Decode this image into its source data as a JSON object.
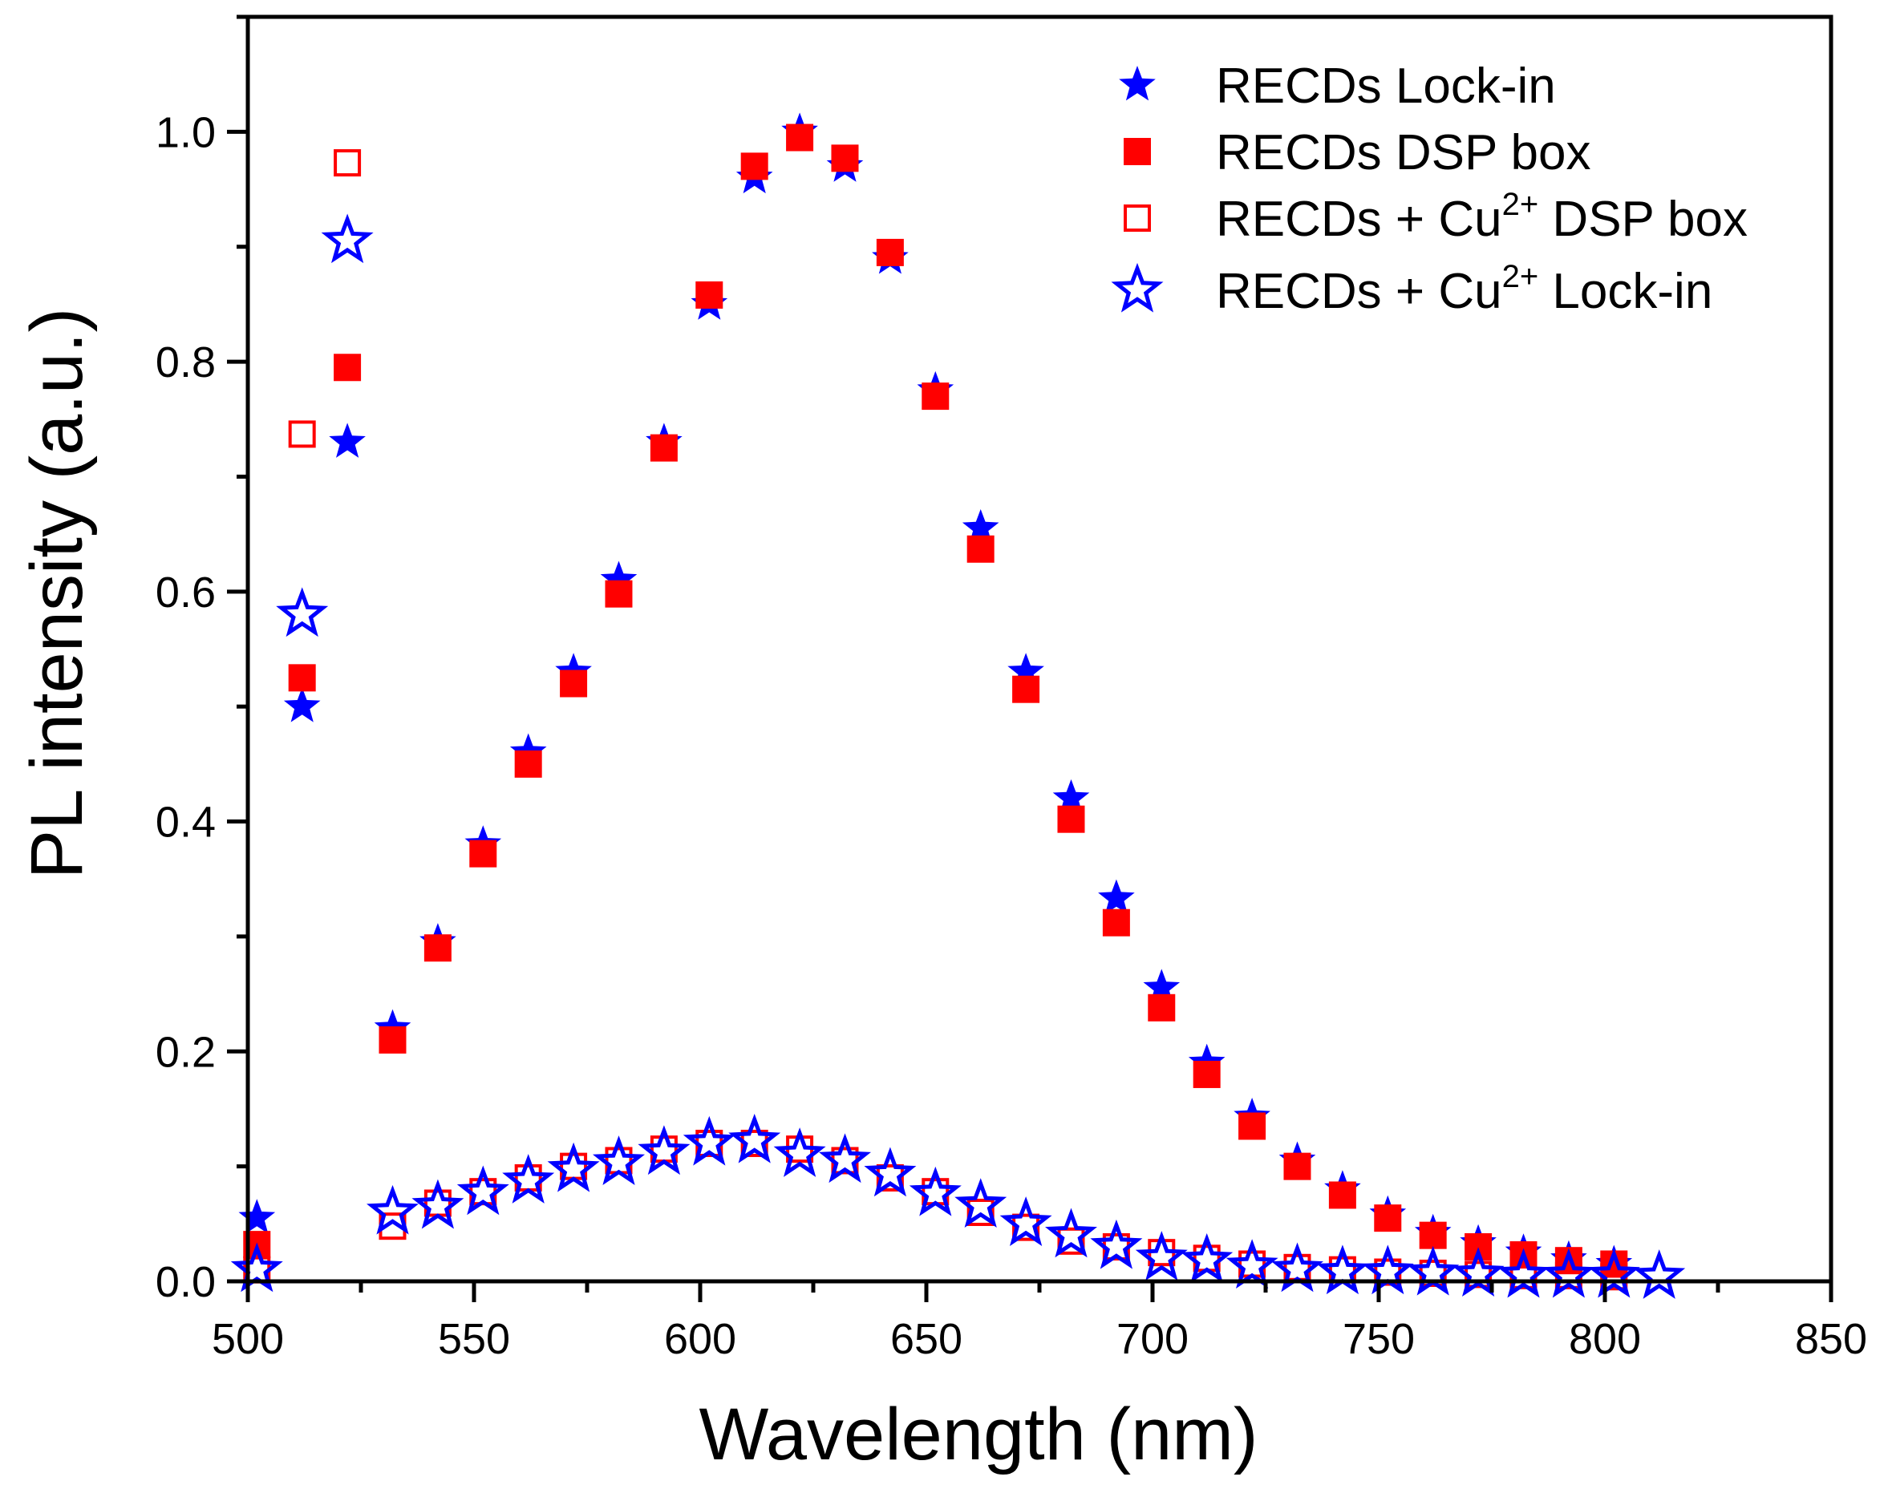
{
  "chart_data": {
    "type": "scatter",
    "title": "",
    "xlabel": "Wavelength (nm)",
    "ylabel": "PL intensity (a.u.)",
    "xlim": [
      500,
      850
    ],
    "ylim": [
      0,
      1.1
    ],
    "xticks": [
      500,
      550,
      600,
      650,
      700,
      750,
      800,
      850
    ],
    "xtick_labels": [
      "500",
      "550",
      "600",
      "650",
      "700",
      "750",
      "800",
      "850"
    ],
    "yticks": [
      0,
      0.2,
      0.4,
      0.6,
      0.8,
      1.0
    ],
    "ytick_labels": [
      "0.0",
      "0.2",
      "0.4",
      "0.6",
      "0.8",
      "1.0"
    ],
    "grid": false,
    "legend_position": "top-right",
    "series": [
      {
        "name": "RECDs Lock-in",
        "label_parts": [
          "RECDs Lock-in"
        ],
        "marker": "star-filled",
        "color": "#0000ff",
        "x": [
          502,
          512,
          522,
          532,
          542,
          552,
          562,
          572,
          582,
          592,
          602,
          612,
          622,
          632,
          642,
          652,
          662,
          672,
          682,
          692,
          702,
          712,
          722,
          732,
          742,
          752,
          762,
          772,
          782,
          792,
          802
        ],
        "y": [
          0.055,
          0.5,
          0.73,
          0.22,
          0.295,
          0.38,
          0.46,
          0.53,
          0.61,
          0.73,
          0.85,
          0.96,
          1.0,
          0.97,
          0.89,
          0.775,
          0.655,
          0.53,
          0.42,
          0.333,
          0.255,
          0.19,
          0.143,
          0.105,
          0.08,
          0.058,
          0.042,
          0.033,
          0.025,
          0.019,
          0.015
        ]
      },
      {
        "name": "RECDs DSP box",
        "label_parts": [
          "RECDs DSP box"
        ],
        "marker": "square-filled",
        "color": "#ff0000",
        "x": [
          502,
          512,
          522,
          532,
          542,
          552,
          562,
          572,
          582,
          592,
          602,
          612,
          622,
          632,
          642,
          652,
          662,
          672,
          682,
          692,
          702,
          712,
          722,
          732,
          742,
          752,
          762,
          772,
          782,
          792,
          802
        ],
        "y": [
          0.032,
          0.525,
          0.795,
          0.21,
          0.29,
          0.372,
          0.45,
          0.52,
          0.598,
          0.725,
          0.858,
          0.97,
          0.995,
          0.977,
          0.895,
          0.77,
          0.637,
          0.515,
          0.402,
          0.312,
          0.238,
          0.18,
          0.135,
          0.1,
          0.075,
          0.055,
          0.04,
          0.03,
          0.023,
          0.018,
          0.015
        ]
      },
      {
        "name": "RECDs + Cu2+ DSP box",
        "label_parts": [
          "RECDs + Cu",
          "2+",
          " DSP box"
        ],
        "marker": "square-open",
        "color": "#ff0000",
        "x": [
          502,
          512,
          522,
          532,
          542,
          552,
          562,
          572,
          582,
          592,
          602,
          612,
          622,
          632,
          642,
          652,
          662,
          672,
          682,
          692,
          702,
          712,
          722,
          732,
          742,
          752,
          762,
          772,
          782,
          792,
          802
        ],
        "y": [
          0.01,
          0.737,
          0.973,
          0.048,
          0.068,
          0.078,
          0.09,
          0.1,
          0.105,
          0.115,
          0.12,
          0.12,
          0.115,
          0.105,
          0.09,
          0.078,
          0.06,
          0.047,
          0.035,
          0.03,
          0.025,
          0.02,
          0.015,
          0.012,
          0.01,
          0.008,
          0.007,
          0.006,
          0.005,
          0.005,
          0.004
        ]
      },
      {
        "name": "RECDs + Cu2+ Lock-in",
        "label_parts": [
          "RECDs + Cu",
          "2+",
          " Lock-in"
        ],
        "marker": "star-open",
        "color": "#0000ff",
        "x": [
          502,
          512,
          522,
          532,
          542,
          552,
          562,
          572,
          582,
          592,
          602,
          612,
          622,
          632,
          642,
          652,
          662,
          672,
          682,
          692,
          702,
          712,
          722,
          732,
          742,
          752,
          762,
          772,
          782,
          792,
          802,
          812
        ],
        "y": [
          0.01,
          0.58,
          0.905,
          0.06,
          0.065,
          0.077,
          0.087,
          0.097,
          0.103,
          0.112,
          0.12,
          0.122,
          0.11,
          0.105,
          0.093,
          0.076,
          0.066,
          0.05,
          0.04,
          0.03,
          0.02,
          0.018,
          0.013,
          0.01,
          0.008,
          0.008,
          0.007,
          0.006,
          0.005,
          0.005,
          0.005,
          0.004
        ]
      }
    ]
  }
}
